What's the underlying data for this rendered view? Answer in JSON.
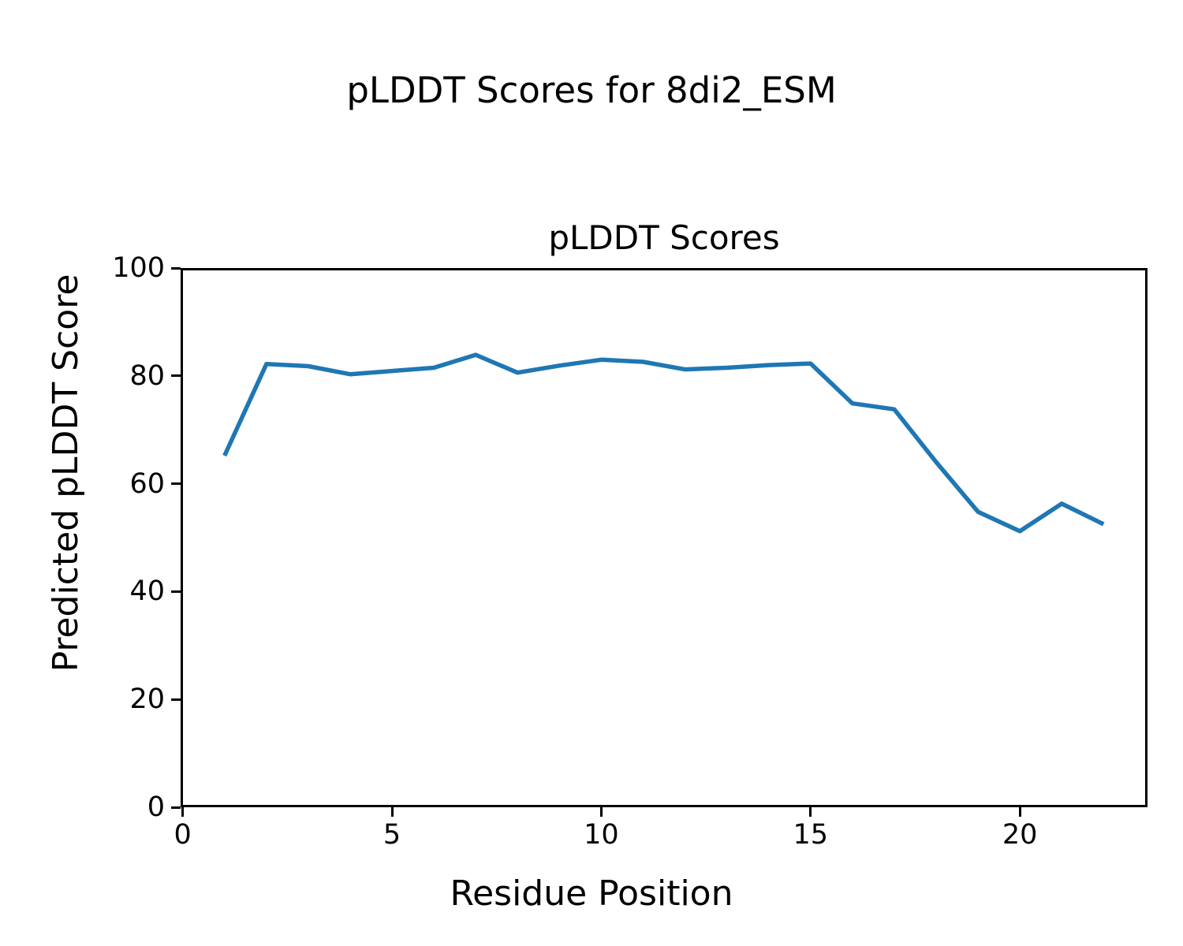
{
  "figure": {
    "suptitle": "pLDDT Scores for 8di2_ESM",
    "background_color": "#ffffff",
    "text_color": "#000000"
  },
  "chart_data": {
    "type": "line",
    "title": "pLDDT Scores",
    "xlabel": "Residue Position",
    "ylabel": "Predicted pLDDT Score",
    "series": [
      {
        "name": "pLDDT",
        "x": [
          1,
          2,
          3,
          4,
          5,
          6,
          7,
          8,
          9,
          10,
          11,
          12,
          13,
          14,
          15,
          16,
          17,
          18,
          19,
          20,
          21,
          22
        ],
        "values": [
          65.2,
          82.2,
          81.8,
          80.3,
          80.9,
          81.5,
          83.9,
          80.6,
          81.9,
          83.0,
          82.6,
          81.2,
          81.5,
          82.0,
          82.3,
          74.9,
          73.8,
          64.0,
          54.8,
          51.2,
          56.3,
          52.5
        ]
      }
    ],
    "line_color": "#1f77b4",
    "xlim": [
      -0.05,
      23.05
    ],
    "ylim": [
      0,
      100
    ],
    "xticks": [
      0,
      5,
      10,
      15,
      20
    ],
    "yticks": [
      0,
      20,
      40,
      60,
      80,
      100
    ],
    "grid": false,
    "legend_position": "none"
  }
}
